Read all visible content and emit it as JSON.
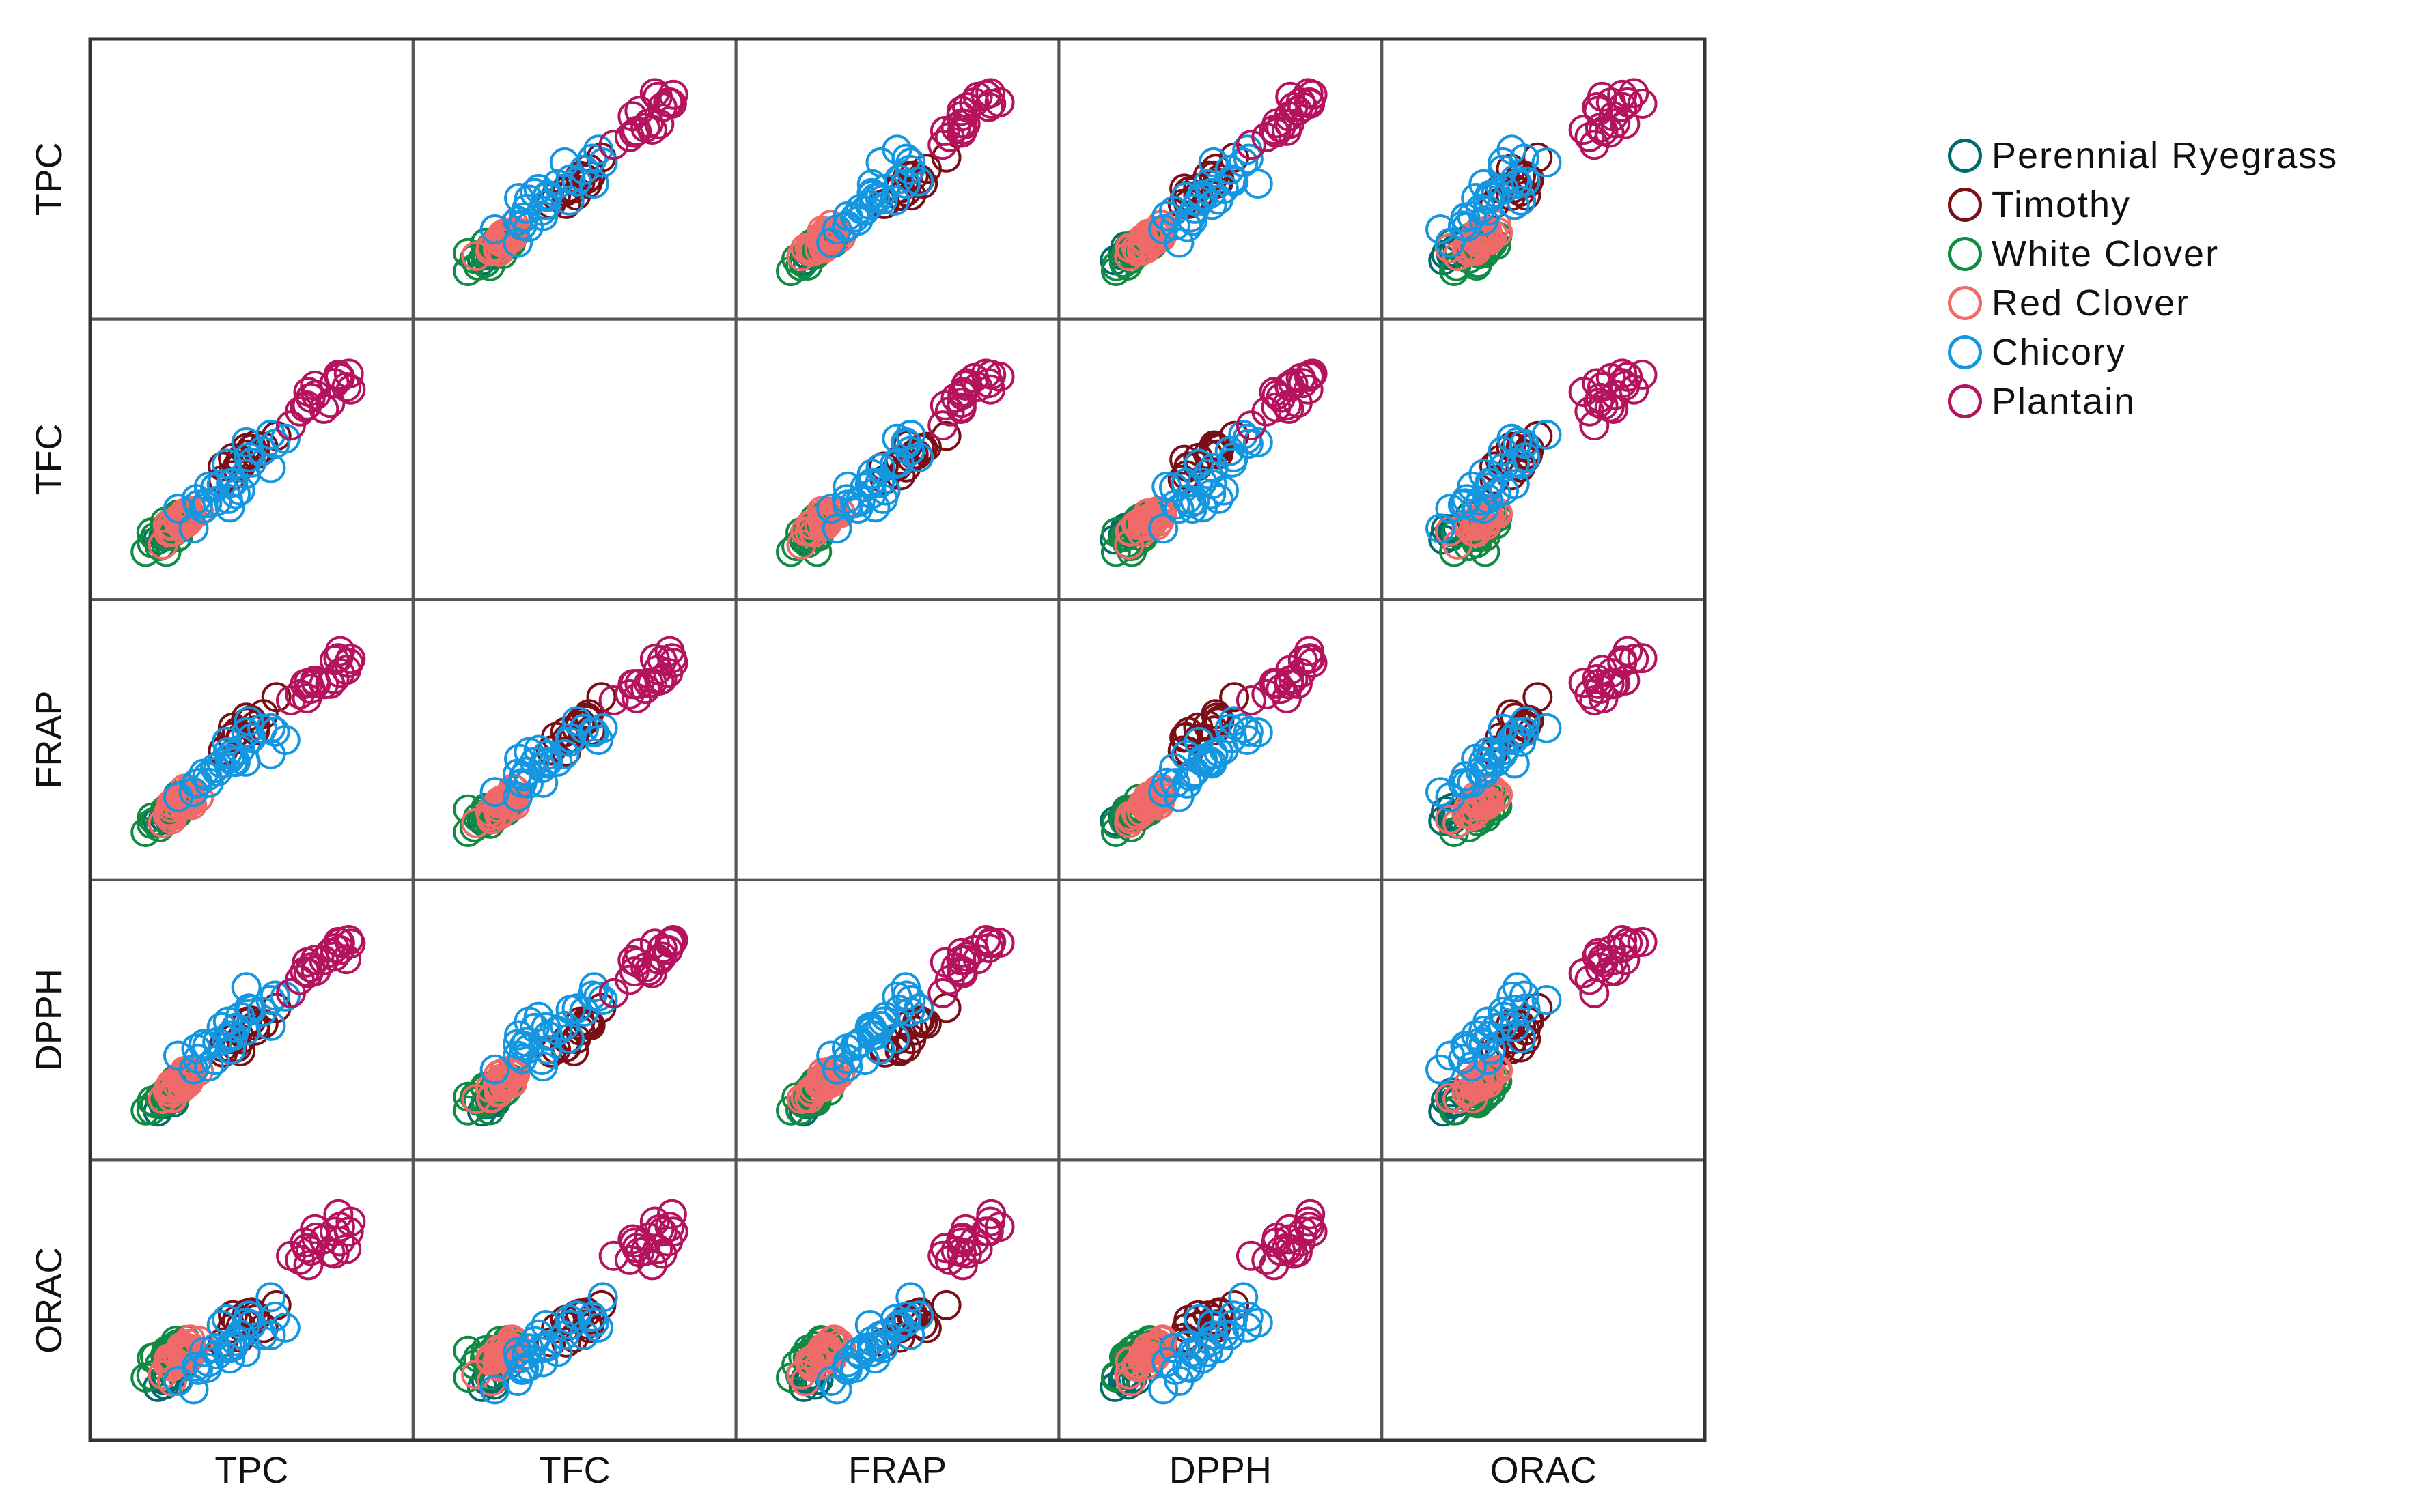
{
  "chart_data": {
    "type": "scatter",
    "subtype": "scatterplot-matrix",
    "marker": "open-circle",
    "variables": [
      "TPC",
      "TFC",
      "FRAP",
      "DPPH",
      "ORAC"
    ],
    "axis_range": [
      0,
      1
    ],
    "groups": [
      {
        "name": "Perennial Ryegrass",
        "color": "#006b6b",
        "means": {
          "TPC": 0.1,
          "TFC": 0.09,
          "FRAP": 0.08,
          "DPPH": 0.06,
          "ORAC": 0.06
        },
        "spread": 0.035,
        "n": 8
      },
      {
        "name": "Timothy",
        "color": "#7b0f17",
        "means": {
          "TPC": 0.5,
          "TFC": 0.55,
          "FRAP": 0.6,
          "DPPH": 0.48,
          "ORAC": 0.42
        },
        "spread": 0.07,
        "n": 14
      },
      {
        "name": "White Clover",
        "color": "#118a44",
        "means": {
          "TPC": 0.1,
          "TFC": 0.1,
          "FRAP": 0.1,
          "DPPH": 0.1,
          "ORAC": 0.2
        },
        "spread": 0.05,
        "n": 22
      },
      {
        "name": "Red Clover",
        "color": "#f06a6a",
        "means": {
          "TPC": 0.16,
          "TFC": 0.17,
          "FRAP": 0.15,
          "DPPH": 0.16,
          "ORAC": 0.2
        },
        "spread": 0.04,
        "n": 28
      },
      {
        "name": "Chicory",
        "color": "#1496e0",
        "means": {
          "TPC": 0.42,
          "TFC": 0.4,
          "FRAP": 0.42,
          "DPPH": 0.45,
          "ORAC": 0.28
        },
        "spread": 0.09,
        "n": 26
      },
      {
        "name": "Plantain",
        "color": "#b5135e",
        "means": {
          "TPC": 0.85,
          "TFC": 0.86,
          "FRAP": 0.86,
          "DPPH": 0.85,
          "ORAC": 0.82
        },
        "spread": 0.07,
        "n": 18
      }
    ],
    "legend_position": "right"
  }
}
